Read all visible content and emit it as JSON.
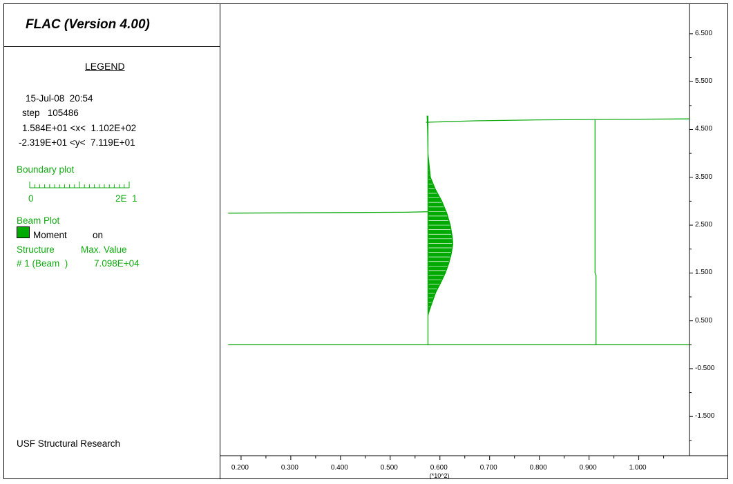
{
  "app": {
    "title": "FLAC (Version 4.00)"
  },
  "legend": {
    "heading": "LEGEND",
    "date": "15-Jul-08  20:54",
    "step": "step   105486",
    "xrange": "1.584E+01 <x<  1.102E+02",
    "yrange": "-2.319E+01 <y<  7.119E+01",
    "boundary_plot_label": "Boundary plot",
    "scale_min": "0",
    "scale_max": "2E  1",
    "beam_plot_label": "Beam Plot",
    "moment_label": "Moment",
    "moment_state": "on",
    "structure_header": "Structure",
    "max_value_header": "Max. Value",
    "structure_row": "# 1 (Beam  )",
    "structure_value": "7.098E+04",
    "footer": "USF Structural Research"
  },
  "colors": {
    "boundary": "#11aa11",
    "beam_fill": "#00aa00",
    "text": "#000000"
  },
  "chart_data": {
    "type": "line",
    "x_tick_labels": [
      "0.200",
      "0.300",
      "0.400",
      "0.500",
      "0.600",
      "0.700",
      "0.800",
      "0.900",
      "1.000"
    ],
    "x_multiplier_label": "(*10^2)",
    "y_tick_labels": [
      "6.500",
      "5.500",
      "4.500",
      "3.500",
      "2.500",
      "1.500",
      "0.500",
      "-0.500",
      "-1.500"
    ],
    "y_tick_values": [
      65,
      55,
      45,
      35,
      25,
      15,
      5,
      -5,
      -15
    ],
    "xlim": [
      15.84,
      110.2
    ],
    "ylim": [
      -23.19,
      71.19
    ],
    "boundary_lines": [
      {
        "name": "ground",
        "points": [
          [
            17.4,
            0
          ],
          [
            110.2,
            0
          ]
        ]
      },
      {
        "name": "left-soil-surface",
        "points": [
          [
            17.4,
            27.5
          ],
          [
            53.2,
            27.7
          ],
          [
            57.5,
            27.8
          ]
        ]
      },
      {
        "name": "right-soil-surface",
        "points": [
          [
            57.2,
            46.5
          ],
          [
            67.0,
            46.8
          ],
          [
            80.0,
            47.0
          ],
          [
            110.2,
            47.2
          ]
        ]
      },
      {
        "name": "right-wall",
        "points": [
          [
            91.2,
            47.0
          ],
          [
            91.2,
            15.0
          ],
          [
            91.4,
            14.5
          ],
          [
            91.4,
            0
          ]
        ]
      }
    ],
    "beam": {
      "x_base": 57.6,
      "y_bottom": 0,
      "y_top": 47.8,
      "moment_diagram": [
        [
          47.8,
          -0.2
        ],
        [
          45.0,
          -0.1
        ],
        [
          40.0,
          0.0
        ],
        [
          35.0,
          0.5
        ],
        [
          32.5,
          1.5
        ],
        [
          30.0,
          2.8
        ],
        [
          27.5,
          3.8
        ],
        [
          25.0,
          4.5
        ],
        [
          22.5,
          4.9
        ],
        [
          21.0,
          5.0
        ],
        [
          19.0,
          4.7
        ],
        [
          17.0,
          4.2
        ],
        [
          15.0,
          3.5
        ],
        [
          13.0,
          2.6
        ],
        [
          11.0,
          1.6
        ],
        [
          9.0,
          0.9
        ],
        [
          7.5,
          0.4
        ],
        [
          6.5,
          0.1
        ],
        [
          6.0,
          0.0
        ]
      ]
    }
  }
}
